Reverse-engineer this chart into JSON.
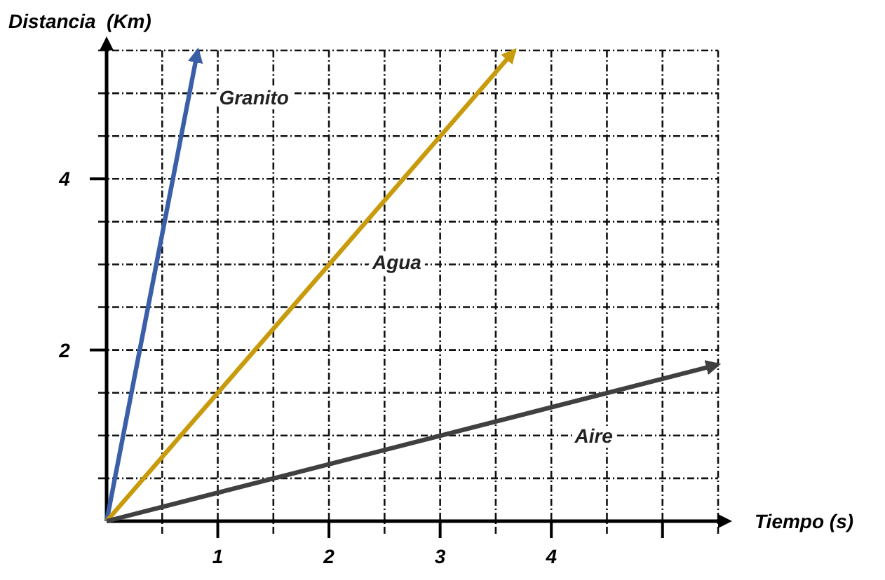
{
  "chart_data": {
    "type": "line",
    "xlabel": "Tiempo (s)",
    "ylabel": "Distancia  (Km)",
    "xlim": [
      0,
      5.5
    ],
    "ylim": [
      0,
      5.5
    ],
    "xticks": [
      {
        "value": 0.5,
        "label": null
      },
      1,
      {
        "value": 1.5,
        "label": null
      },
      2,
      {
        "value": 2.5,
        "label": null
      },
      3,
      {
        "value": 3.5,
        "label": null
      },
      4,
      {
        "value": 4.5,
        "label": null
      },
      {
        "value": 5,
        "label": null
      },
      {
        "value": 5.5,
        "label": null
      }
    ],
    "yticks": [
      {
        "value": 0.5,
        "label": null
      },
      {
        "value": 1,
        "label": null
      },
      {
        "value": 1.5,
        "label": null
      },
      2,
      {
        "value": 2.5,
        "label": null
      },
      {
        "value": 3,
        "label": null
      },
      {
        "value": 3.5,
        "label": null
      },
      4,
      {
        "value": 4.5,
        "label": null
      },
      {
        "value": 5,
        "label": null
      },
      {
        "value": 5.5,
        "label": null
      }
    ],
    "grid": true,
    "marker": "none",
    "line_style": "solid",
    "series": [
      {
        "name": "Granito",
        "color": "#3a5fa8",
        "x": [
          0,
          0.82
        ],
        "values": [
          0,
          5.5
        ]
      },
      {
        "name": "Agua",
        "color": "#c89b0c",
        "x": [
          0,
          3.67
        ],
        "values": [
          0,
          5.5
        ]
      },
      {
        "name": "Aire",
        "color": "#404040",
        "x": [
          0,
          5.5
        ],
        "values": [
          0,
          1.83
        ]
      }
    ]
  }
}
